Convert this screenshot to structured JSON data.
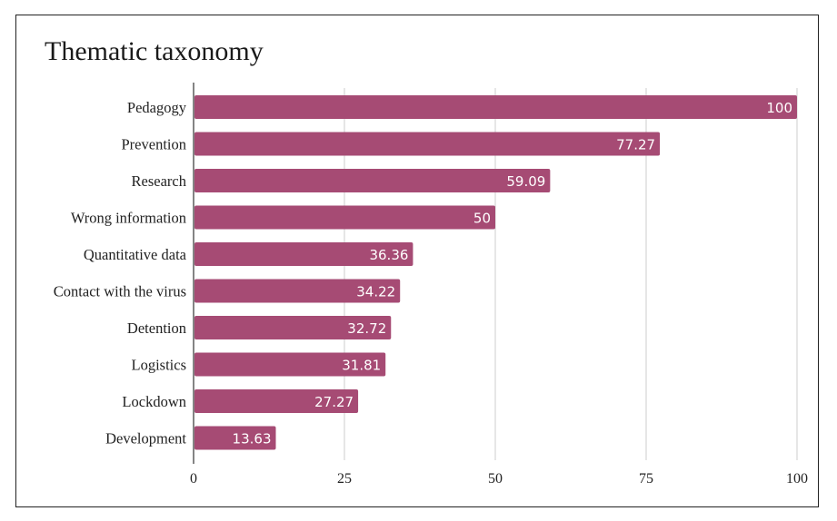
{
  "chart_data": {
    "type": "bar",
    "orientation": "horizontal",
    "title": "Thematic taxonomy",
    "xlabel": "",
    "ylabel": "",
    "categories": [
      "Pedagogy",
      "Prevention",
      "Research",
      "Wrong information",
      "Quantitative data",
      "Contact with the virus",
      "Detention",
      "Logistics",
      "Lockdown",
      "Development"
    ],
    "values": [
      100,
      77.27,
      59.09,
      50,
      36.36,
      34.22,
      32.72,
      31.81,
      27.27,
      13.63
    ],
    "value_labels": [
      "100",
      "77.27",
      "59.09",
      "50",
      "36.36",
      "34.22",
      "32.72",
      "31.81",
      "27.27",
      "13.63"
    ],
    "xlim": [
      0,
      100
    ],
    "xticks": [
      0,
      25,
      50,
      75,
      100
    ],
    "xtick_labels": [
      "0",
      "25",
      "50",
      "75",
      "100"
    ],
    "grid": true,
    "legend": "none",
    "bar_color": "#a64b74",
    "grid_color": "#cccccc"
  }
}
